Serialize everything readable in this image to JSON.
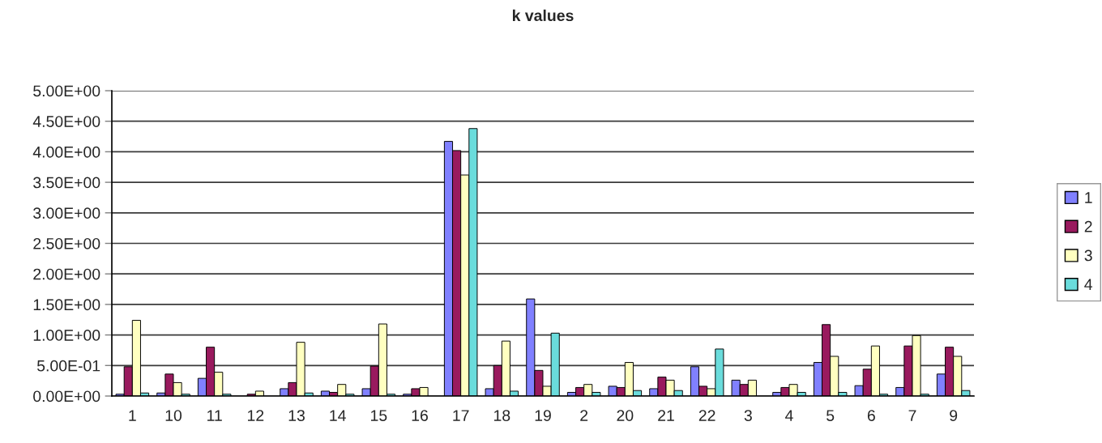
{
  "chart_data": {
    "type": "bar",
    "title": "k values",
    "categories": [
      "1",
      "10",
      "11",
      "12",
      "13",
      "14",
      "15",
      "16",
      "17",
      "18",
      "19",
      "2",
      "20",
      "21",
      "22",
      "3",
      "4",
      "5",
      "6",
      "7",
      "9"
    ],
    "series": [
      {
        "name": "1",
        "color": "#8080ff",
        "values": [
          0.03,
          0.05,
          0.29,
          null,
          0.12,
          0.08,
          0.12,
          0.03,
          4.17,
          0.12,
          1.59,
          0.06,
          0.16,
          0.12,
          0.48,
          0.26,
          0.06,
          0.55,
          0.17,
          0.14,
          0.36
        ]
      },
      {
        "name": "2",
        "color": "#991a5e",
        "values": [
          0.48,
          0.36,
          0.8,
          0.03,
          0.22,
          0.06,
          0.49,
          0.12,
          4.02,
          0.5,
          0.42,
          0.14,
          0.14,
          0.31,
          0.16,
          0.19,
          0.14,
          1.17,
          0.44,
          0.82,
          0.8
        ]
      },
      {
        "name": "3",
        "color": "#ffffc0",
        "values": [
          1.24,
          0.22,
          0.39,
          0.08,
          0.88,
          0.19,
          1.18,
          0.14,
          3.62,
          0.9,
          0.16,
          0.19,
          0.55,
          0.26,
          0.12,
          0.26,
          0.19,
          0.65,
          0.82,
          0.99,
          0.65
        ]
      },
      {
        "name": "4",
        "color": "#6adcdc",
        "values": [
          0.05,
          0.03,
          0.03,
          null,
          0.05,
          0.03,
          0.03,
          null,
          4.38,
          0.08,
          1.03,
          0.06,
          0.09,
          0.09,
          0.77,
          null,
          0.06,
          0.06,
          0.03,
          0.03,
          0.09
        ]
      }
    ],
    "ylim": [
      0,
      5
    ],
    "yticks": [
      {
        "value": 0,
        "label": "0.00E+00"
      },
      {
        "value": 0.5,
        "label": "5.00E-01"
      },
      {
        "value": 1,
        "label": "1.00E+00"
      },
      {
        "value": 1.5,
        "label": "1.50E+00"
      },
      {
        "value": 2,
        "label": "2.00E+00"
      },
      {
        "value": 2.5,
        "label": "2.50E+00"
      },
      {
        "value": 3,
        "label": "3.00E+00"
      },
      {
        "value": 3.5,
        "label": "3.50E+00"
      },
      {
        "value": 4,
        "label": "4.00E+00"
      },
      {
        "value": 4.5,
        "label": "4.50E+00"
      },
      {
        "value": 5,
        "label": "5.00E+00"
      }
    ],
    "grid": "y",
    "legend": "right"
  }
}
